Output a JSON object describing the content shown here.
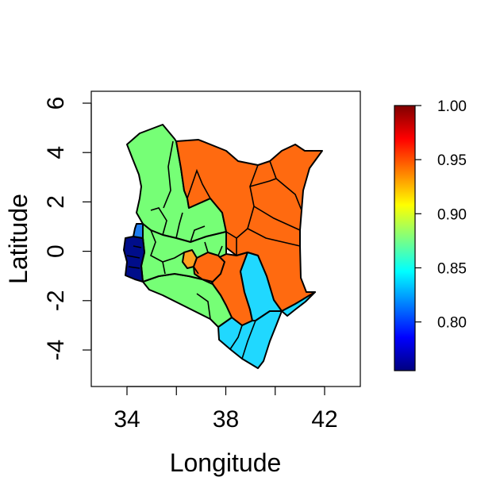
{
  "map": {
    "x_axis": {
      "label": "Longitude",
      "ticks": [
        "34",
        "38",
        "42"
      ]
    },
    "y_axis": {
      "label": "Latitude",
      "ticks": [
        "-4",
        "-2",
        "0",
        "2",
        "4",
        "6"
      ]
    },
    "colorbar": {
      "ticks": [
        "0.80",
        "0.85",
        "0.90",
        "0.95",
        "1.00"
      ],
      "range": [
        0.755,
        1.0
      ],
      "palette": [
        "#00007f",
        "#0000ff",
        "#007fff",
        "#00ffff",
        "#7fff7f",
        "#ffff00",
        "#ff7f00",
        "#ff0000",
        "#7f0000"
      ]
    },
    "region_colors": {
      "green": "#76ff76",
      "orange": "#ff6a10",
      "cyan": "#20d8ff",
      "navy": "#000d8a",
      "blue": "#1f7df0",
      "amber": "#ffa020"
    }
  }
}
